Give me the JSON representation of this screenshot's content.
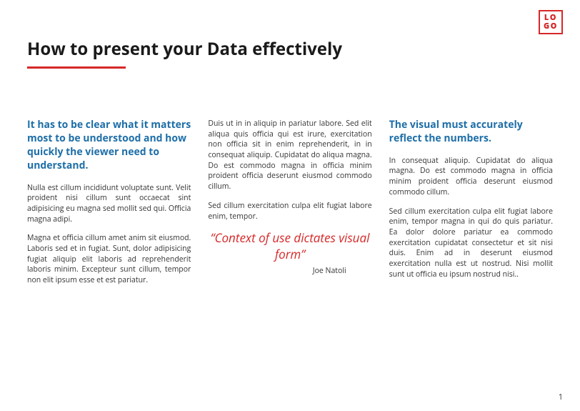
{
  "colors": {
    "accent_red": "#d62828",
    "accent_blue": "#1e6fa8",
    "text": "#333333",
    "bg": "#ffffff"
  },
  "logo": {
    "line1": "LO",
    "line2": "GO"
  },
  "title": "How to present your Data effectively",
  "col1": {
    "heading": "It has to be clear what it matters most to be understood and how quickly the viewer need to understand.",
    "p1": "Nulla est cillum incididunt voluptate sunt. Velit proident nisi cillum sunt occaecat sint adipisicing eu magna sed mollit sed qui. Officia magna adipi.",
    "p2": "Magna et officia cillum amet anim sit eiusmod. Laboris sed et in fugiat. Sunt, dolor adipisicing fugiat aliquip elit laboris ad reprehenderit laboris minim. Excepteur sunt cillum, tempor non elit ipsum esse et est pariatur."
  },
  "col2": {
    "p1": "Duis ut in in aliquip in pariatur labore. Sed elit aliqua quis officia qui est irure, exercitation non officia sit in enim reprehenderit, in in consequat aliquip. Cupidatat do aliqua magna. Do est commodo magna in officia minim proident officia deserunt eiusmod commodo cillum.",
    "p2": "Sed cillum exercitation culpa elit fugiat labore enim, tempor.",
    "quote": "“Context of use dictates visual form”",
    "quote_author": "Joe Natoli"
  },
  "col3": {
    "heading": "The visual must accurately reflect the numbers.",
    "p1": "In consequat aliquip. Cupidatat do aliqua magna. Do est commodo magna in officia minim proident officia deserunt eiusmod commodo cillum.",
    "p2": "Sed cillum exercitation culpa elit fugiat labore enim, tempor magna in qui do quis pariatur. Ea dolor dolore pariatur ea commodo exercitation cupidatat consectetur et sit nisi duis. Enim ad in deserunt eiusmod exercitation nulla est ut nostrud. Nisi mollit sunt ut officia eu ipsum nostrud nisi.."
  },
  "page_number": "1"
}
